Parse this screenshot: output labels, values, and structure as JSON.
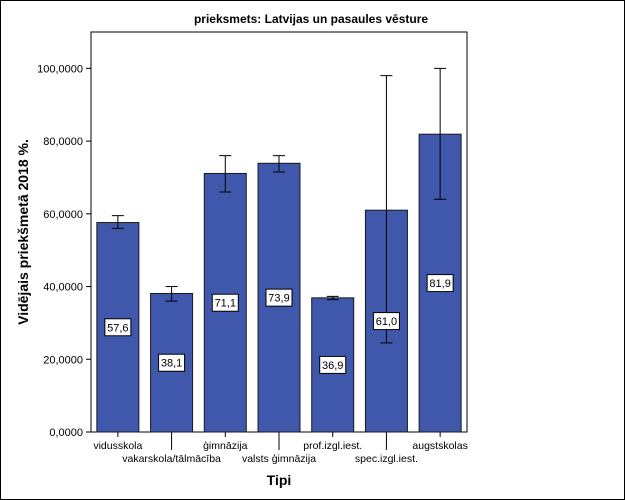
{
  "chart_data": {
    "type": "bar",
    "title": "prieksmets: Latvijas un pasaules vēsture",
    "xlabel": "Tipi",
    "ylabel": "Vidējais priekšmetā 2018 %.",
    "ylim": [
      0,
      110
    ],
    "y_ticks": [
      0,
      20,
      40,
      60,
      80,
      100
    ],
    "y_tick_labels": [
      "0,0000",
      "20,0000",
      "40,0000",
      "60,0000",
      "80,0000",
      "100,0000"
    ],
    "categories": [
      "vidusskola",
      "vakarskola/tālmācība",
      "ģimnāzija",
      "valsts ģimnāzija",
      "prof.izgl.iest.",
      "spec.izgl.iest.",
      "augstskolas"
    ],
    "values": [
      57.6,
      38.1,
      71.1,
      73.9,
      36.9,
      61.0,
      81.9
    ],
    "data_labels": [
      "57,6",
      "38,1",
      "71,1",
      "73,9",
      "36,9",
      "61,0",
      "81,9"
    ],
    "error_low": [
      56.0,
      36.0,
      66.0,
      71.5,
      36.4,
      24.5,
      64.0
    ],
    "error_high": [
      59.5,
      40.0,
      76.0,
      76.0,
      37.3,
      98.0,
      100.0
    ],
    "bar_color": "#3f58ab",
    "grid": false,
    "legend": "none"
  }
}
